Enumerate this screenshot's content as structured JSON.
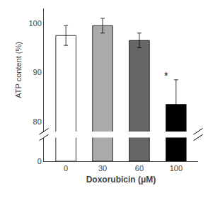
{
  "chart_data": {
    "type": "bar",
    "categories": [
      "0",
      "30",
      "60",
      "100"
    ],
    "values": [
      97.5,
      99.5,
      96.5,
      83.5
    ],
    "errors": [
      2.0,
      1.5,
      1.5,
      5.0
    ],
    "colors": [
      "#ffffff",
      "#aaaaaa",
      "#666666",
      "#000000"
    ],
    "xlabel": "Doxorubicin (μM)",
    "ylabel": "ATP content (%)",
    "ylim": [
      78,
      103
    ],
    "yticks": [
      80,
      90,
      100
    ],
    "y2lim": [
      0,
      11
    ],
    "y2ticks": [
      0
    ],
    "annotations": [
      {
        "text": "*",
        "x": "100"
      }
    ],
    "grid": false
  }
}
